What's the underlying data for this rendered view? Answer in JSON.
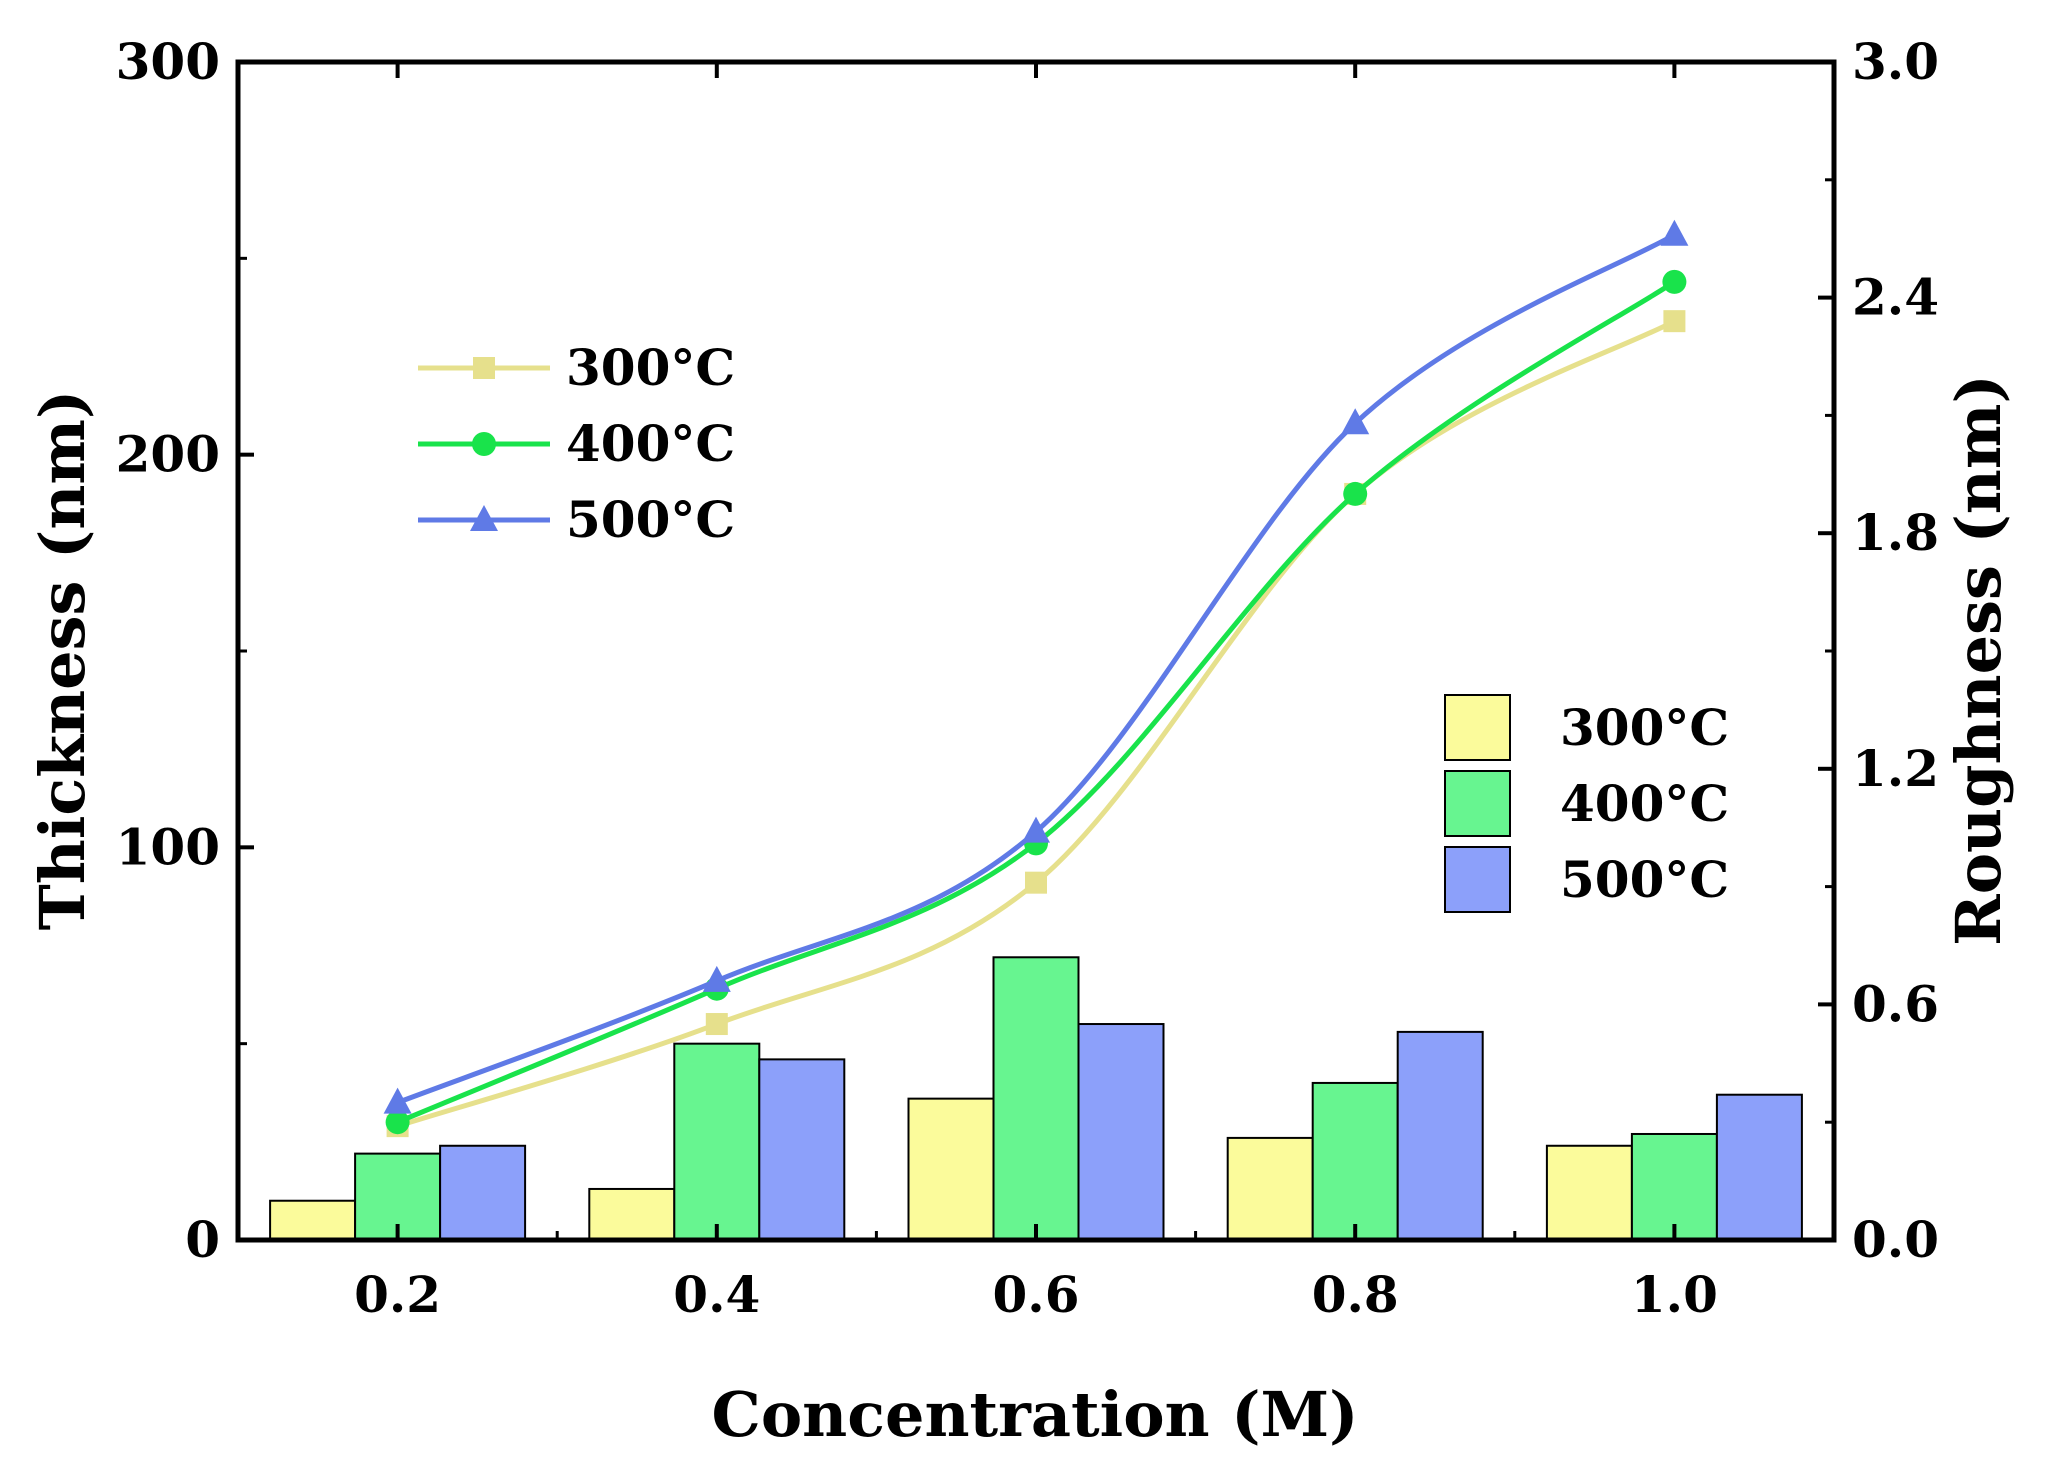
{
  "chart_data": {
    "type": "bar+line",
    "title": "",
    "xlabel": "Concentration (M)",
    "ylabel_left": "Thickness (nm)",
    "ylabel_right": "Roughness (nm)",
    "x_ticks": [
      "0.2",
      "0.4",
      "0.6",
      "0.8",
      "1.0"
    ],
    "x": [
      0.2,
      0.4,
      0.6,
      0.8,
      1.0
    ],
    "xlim": [
      0.1,
      1.1
    ],
    "ylim_left": [
      0,
      300
    ],
    "ylim_right": [
      0,
      3.0
    ],
    "y_ticks_left": [
      "0",
      "100",
      "200",
      "300"
    ],
    "y_ticks_right": [
      "0.0",
      "0.6",
      "1.2",
      "1.8",
      "2.4",
      "3.0"
    ],
    "line_series": [
      {
        "name": "300°C",
        "color": "#e6e08c",
        "marker": "square",
        "values": [
          29,
          55,
          91,
          190,
          234
        ]
      },
      {
        "name": "400°C",
        "color": "#19e34b",
        "marker": "circle",
        "values": [
          30,
          64,
          101,
          190,
          244
        ]
      },
      {
        "name": "500°C",
        "color": "#5f7ae6",
        "marker": "triangle",
        "values": [
          35,
          66,
          104,
          208,
          256
        ]
      }
    ],
    "bar_series": [
      {
        "name": "300°C",
        "color": "#fbfb9b",
        "values": [
          0.1,
          0.13,
          0.36,
          0.26,
          0.24
        ]
      },
      {
        "name": "400°C",
        "color": "#67f590",
        "values": [
          0.22,
          0.5,
          0.72,
          0.4,
          0.27
        ]
      },
      {
        "name": "500°C",
        "color": "#8ca0fa",
        "values": [
          0.24,
          0.46,
          0.55,
          0.53,
          0.37
        ]
      }
    ],
    "grid": false,
    "legend_lines_position": "upper-left",
    "legend_bars_position": "middle-right"
  }
}
